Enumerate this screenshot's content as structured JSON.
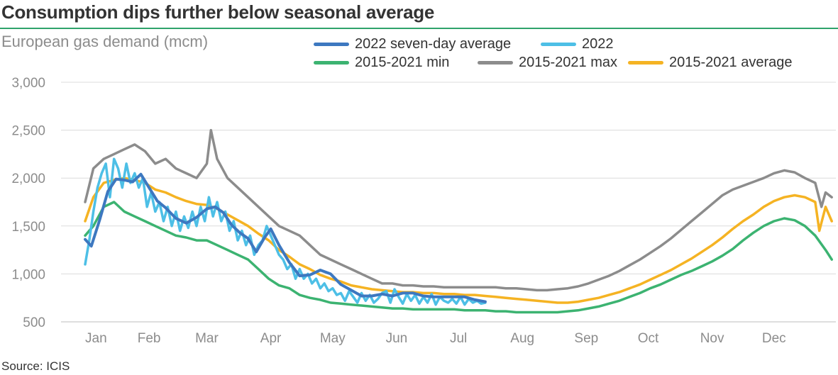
{
  "title": "Consumption dips further below seasonal average",
  "subtitle": "European gas demand (mcm)",
  "source": "Source: ICIS",
  "chart_data": {
    "type": "line",
    "title": "Consumption dips further below seasonal average",
    "ylabel": "European gas demand (mcm)",
    "xlabel": "",
    "ylim": [
      500,
      3000
    ],
    "yticks": [
      500,
      1000,
      1500,
      2000,
      2500,
      3000
    ],
    "ytick_labels": [
      "500",
      "1,000",
      "1,500",
      "2,000",
      "2,500",
      "3,000"
    ],
    "x_unit": "day of year",
    "xlim": [
      1,
      365
    ],
    "month_labels": [
      "Jan",
      "Feb",
      "Mar",
      "Apr",
      "May",
      "Jun",
      "Jul",
      "Aug",
      "Sep",
      "Oct",
      "Nov",
      "Dec"
    ],
    "month_label_days": [
      1,
      32,
      60,
      91,
      121,
      152,
      182,
      213,
      244,
      274,
      305,
      335
    ],
    "grid": true,
    "legend_position": "top",
    "series": [
      {
        "name": "2022 seven-day average",
        "color": "#3d78c0",
        "x": [
          1,
          4,
          8,
          12,
          16,
          20,
          24,
          28,
          32,
          36,
          40,
          45,
          50,
          55,
          60,
          64,
          68,
          72,
          76,
          80,
          84,
          88,
          91,
          95,
          100,
          105,
          110,
          115,
          120,
          125,
          130,
          135,
          140,
          145,
          150,
          155,
          160,
          165,
          170,
          175,
          180,
          185,
          190,
          195
        ],
        "values": [
          1360,
          1290,
          1560,
          1860,
          1990,
          1980,
          1960,
          2040,
          1900,
          1760,
          1690,
          1580,
          1530,
          1590,
          1680,
          1700,
          1640,
          1510,
          1430,
          1370,
          1230,
          1380,
          1470,
          1300,
          1120,
          980,
          990,
          1040,
          1000,
          890,
          830,
          770,
          770,
          790,
          770,
          800,
          800,
          770,
          760,
          760,
          760,
          760,
          730,
          710
        ]
      },
      {
        "name": "2022",
        "color": "#4dbfe6",
        "x": [
          1,
          3,
          5,
          7,
          9,
          11,
          13,
          15,
          17,
          19,
          21,
          23,
          25,
          27,
          29,
          31,
          33,
          35,
          37,
          39,
          41,
          43,
          45,
          47,
          49,
          51,
          53,
          55,
          57,
          59,
          61,
          63,
          65,
          67,
          69,
          71,
          73,
          75,
          77,
          79,
          81,
          83,
          85,
          87,
          89,
          91,
          93,
          95,
          97,
          99,
          101,
          103,
          105,
          107,
          109,
          111,
          113,
          115,
          117,
          119,
          121,
          123,
          125,
          127,
          129,
          131,
          133,
          135,
          137,
          139,
          141,
          143,
          145,
          147,
          149,
          151,
          153,
          155,
          157,
          159,
          161,
          163,
          165,
          167,
          169,
          171,
          173,
          175,
          177,
          179,
          181,
          183,
          185,
          187,
          189,
          191,
          193,
          195
        ],
        "values": [
          1100,
          1350,
          1650,
          1900,
          2050,
          2150,
          1800,
          2200,
          2100,
          1900,
          2150,
          1950,
          2050,
          1900,
          2000,
          1700,
          1850,
          1650,
          1750,
          1550,
          1700,
          1500,
          1650,
          1450,
          1600,
          1480,
          1650,
          1500,
          1700,
          1550,
          1800,
          1600,
          1750,
          1550,
          1650,
          1450,
          1550,
          1350,
          1450,
          1300,
          1400,
          1200,
          1300,
          1350,
          1500,
          1400,
          1300,
          1200,
          1150,
          1050,
          1100,
          950,
          1050,
          950,
          1000,
          900,
          950,
          850,
          900,
          820,
          850,
          780,
          800,
          720,
          820,
          760,
          700,
          800,
          720,
          780,
          700,
          740,
          800,
          820,
          700,
          840,
          760,
          690,
          790,
          720,
          780,
          690,
          760,
          700,
          790,
          680,
          760,
          720,
          700,
          740,
          690,
          760,
          680,
          740,
          700,
          720,
          690,
          700
        ]
      },
      {
        "name": "2015-2021 min",
        "color": "#3cb371",
        "x": [
          1,
          5,
          10,
          15,
          20,
          25,
          30,
          35,
          40,
          45,
          50,
          55,
          60,
          65,
          70,
          75,
          80,
          85,
          90,
          95,
          100,
          105,
          110,
          115,
          120,
          125,
          130,
          135,
          140,
          145,
          150,
          155,
          160,
          165,
          170,
          175,
          180,
          185,
          190,
          195,
          200,
          205,
          210,
          215,
          220,
          225,
          230,
          235,
          240,
          245,
          250,
          255,
          260,
          265,
          270,
          275,
          280,
          285,
          290,
          295,
          300,
          305,
          310,
          315,
          320,
          325,
          330,
          335,
          340,
          345,
          350,
          355,
          360,
          363
        ],
        "values": [
          1400,
          1500,
          1700,
          1750,
          1650,
          1600,
          1550,
          1500,
          1450,
          1400,
          1380,
          1350,
          1350,
          1300,
          1250,
          1200,
          1150,
          1050,
          950,
          880,
          850,
          780,
          750,
          730,
          700,
          690,
          680,
          670,
          660,
          650,
          640,
          640,
          630,
          630,
          630,
          630,
          630,
          620,
          620,
          620,
          610,
          610,
          600,
          600,
          600,
          600,
          600,
          610,
          620,
          640,
          660,
          690,
          720,
          760,
          800,
          850,
          890,
          940,
          990,
          1030,
          1080,
          1130,
          1190,
          1260,
          1350,
          1430,
          1500,
          1550,
          1580,
          1560,
          1500,
          1400,
          1250,
          1150
        ]
      },
      {
        "name": "2015-2021 max",
        "color": "#8c8c8c",
        "x": [
          1,
          5,
          10,
          15,
          20,
          25,
          30,
          35,
          40,
          45,
          50,
          55,
          60,
          62,
          65,
          70,
          75,
          80,
          85,
          90,
          95,
          100,
          105,
          110,
          115,
          120,
          125,
          130,
          135,
          140,
          145,
          150,
          155,
          160,
          165,
          170,
          175,
          180,
          185,
          190,
          195,
          200,
          205,
          210,
          215,
          220,
          225,
          230,
          235,
          240,
          245,
          250,
          255,
          260,
          265,
          270,
          275,
          280,
          285,
          290,
          295,
          300,
          305,
          310,
          315,
          320,
          325,
          330,
          335,
          340,
          345,
          350,
          355,
          358,
          360,
          363
        ],
        "values": [
          1750,
          2100,
          2200,
          2250,
          2300,
          2350,
          2280,
          2150,
          2200,
          2100,
          2050,
          2000,
          2150,
          2500,
          2200,
          2000,
          1900,
          1800,
          1700,
          1600,
          1500,
          1450,
          1400,
          1300,
          1200,
          1150,
          1100,
          1050,
          1000,
          950,
          900,
          900,
          880,
          880,
          870,
          870,
          860,
          860,
          860,
          860,
          860,
          860,
          850,
          850,
          840,
          830,
          830,
          840,
          850,
          870,
          900,
          940,
          980,
          1030,
          1090,
          1150,
          1220,
          1290,
          1370,
          1460,
          1550,
          1640,
          1730,
          1820,
          1880,
          1920,
          1960,
          2000,
          2050,
          2080,
          2060,
          2000,
          1950,
          1700,
          1850,
          1800
        ]
      },
      {
        "name": "2015-2021 average",
        "color": "#f5b323",
        "x": [
          1,
          5,
          10,
          15,
          20,
          25,
          30,
          35,
          40,
          45,
          50,
          55,
          60,
          65,
          70,
          75,
          80,
          85,
          90,
          95,
          100,
          105,
          110,
          115,
          120,
          125,
          130,
          135,
          140,
          145,
          150,
          155,
          160,
          165,
          170,
          175,
          180,
          185,
          190,
          195,
          200,
          205,
          210,
          215,
          220,
          225,
          230,
          235,
          240,
          245,
          250,
          255,
          260,
          265,
          270,
          275,
          280,
          285,
          290,
          295,
          300,
          305,
          310,
          315,
          320,
          325,
          330,
          335,
          340,
          345,
          350,
          355,
          357,
          360,
          363
        ],
        "values": [
          1550,
          1800,
          1950,
          1980,
          2000,
          1980,
          1950,
          1880,
          1850,
          1800,
          1760,
          1730,
          1720,
          1680,
          1620,
          1560,
          1500,
          1420,
          1350,
          1250,
          1180,
          1100,
          1050,
          990,
          950,
          920,
          880,
          860,
          840,
          830,
          820,
          810,
          810,
          800,
          800,
          790,
          790,
          780,
          780,
          770,
          760,
          750,
          740,
          730,
          720,
          710,
          700,
          700,
          710,
          730,
          750,
          780,
          810,
          850,
          890,
          940,
          990,
          1040,
          1100,
          1160,
          1230,
          1300,
          1380,
          1470,
          1550,
          1620,
          1700,
          1760,
          1800,
          1820,
          1800,
          1750,
          1450,
          1700,
          1550
        ]
      }
    ]
  }
}
